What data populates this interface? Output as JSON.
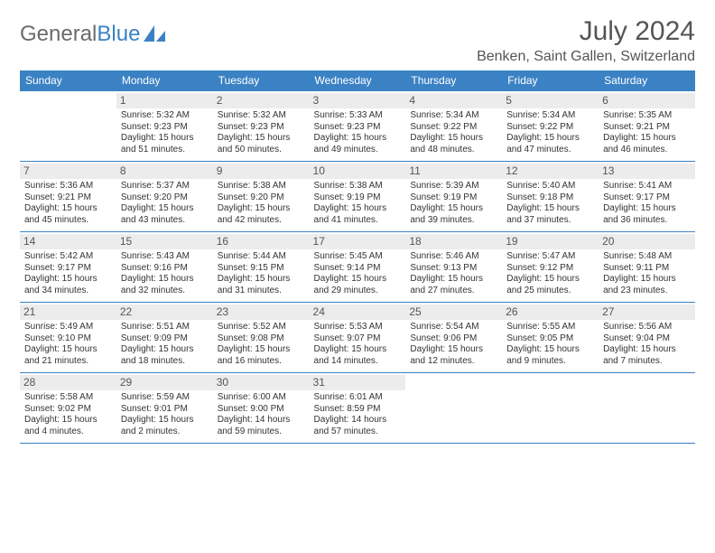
{
  "brand": {
    "part1": "General",
    "part2": "Blue"
  },
  "title": "July 2024",
  "location": "Benken, Saint Gallen, Switzerland",
  "colors": {
    "header_bg": "#3b82c4",
    "header_text": "#ffffff",
    "daynum_bg": "#ececec",
    "border": "#3b82c4",
    "body_text": "#333333",
    "title_text": "#555555"
  },
  "day_headers": [
    "Sunday",
    "Monday",
    "Tuesday",
    "Wednesday",
    "Thursday",
    "Friday",
    "Saturday"
  ],
  "weeks": [
    [
      null,
      {
        "n": "1",
        "sr": "5:32 AM",
        "ss": "9:23 PM",
        "dl": "15 hours and 51 minutes."
      },
      {
        "n": "2",
        "sr": "5:32 AM",
        "ss": "9:23 PM",
        "dl": "15 hours and 50 minutes."
      },
      {
        "n": "3",
        "sr": "5:33 AM",
        "ss": "9:23 PM",
        "dl": "15 hours and 49 minutes."
      },
      {
        "n": "4",
        "sr": "5:34 AM",
        "ss": "9:22 PM",
        "dl": "15 hours and 48 minutes."
      },
      {
        "n": "5",
        "sr": "5:34 AM",
        "ss": "9:22 PM",
        "dl": "15 hours and 47 minutes."
      },
      {
        "n": "6",
        "sr": "5:35 AM",
        "ss": "9:21 PM",
        "dl": "15 hours and 46 minutes."
      }
    ],
    [
      {
        "n": "7",
        "sr": "5:36 AM",
        "ss": "9:21 PM",
        "dl": "15 hours and 45 minutes."
      },
      {
        "n": "8",
        "sr": "5:37 AM",
        "ss": "9:20 PM",
        "dl": "15 hours and 43 minutes."
      },
      {
        "n": "9",
        "sr": "5:38 AM",
        "ss": "9:20 PM",
        "dl": "15 hours and 42 minutes."
      },
      {
        "n": "10",
        "sr": "5:38 AM",
        "ss": "9:19 PM",
        "dl": "15 hours and 41 minutes."
      },
      {
        "n": "11",
        "sr": "5:39 AM",
        "ss": "9:19 PM",
        "dl": "15 hours and 39 minutes."
      },
      {
        "n": "12",
        "sr": "5:40 AM",
        "ss": "9:18 PM",
        "dl": "15 hours and 37 minutes."
      },
      {
        "n": "13",
        "sr": "5:41 AM",
        "ss": "9:17 PM",
        "dl": "15 hours and 36 minutes."
      }
    ],
    [
      {
        "n": "14",
        "sr": "5:42 AM",
        "ss": "9:17 PM",
        "dl": "15 hours and 34 minutes."
      },
      {
        "n": "15",
        "sr": "5:43 AM",
        "ss": "9:16 PM",
        "dl": "15 hours and 32 minutes."
      },
      {
        "n": "16",
        "sr": "5:44 AM",
        "ss": "9:15 PM",
        "dl": "15 hours and 31 minutes."
      },
      {
        "n": "17",
        "sr": "5:45 AM",
        "ss": "9:14 PM",
        "dl": "15 hours and 29 minutes."
      },
      {
        "n": "18",
        "sr": "5:46 AM",
        "ss": "9:13 PM",
        "dl": "15 hours and 27 minutes."
      },
      {
        "n": "19",
        "sr": "5:47 AM",
        "ss": "9:12 PM",
        "dl": "15 hours and 25 minutes."
      },
      {
        "n": "20",
        "sr": "5:48 AM",
        "ss": "9:11 PM",
        "dl": "15 hours and 23 minutes."
      }
    ],
    [
      {
        "n": "21",
        "sr": "5:49 AM",
        "ss": "9:10 PM",
        "dl": "15 hours and 21 minutes."
      },
      {
        "n": "22",
        "sr": "5:51 AM",
        "ss": "9:09 PM",
        "dl": "15 hours and 18 minutes."
      },
      {
        "n": "23",
        "sr": "5:52 AM",
        "ss": "9:08 PM",
        "dl": "15 hours and 16 minutes."
      },
      {
        "n": "24",
        "sr": "5:53 AM",
        "ss": "9:07 PM",
        "dl": "15 hours and 14 minutes."
      },
      {
        "n": "25",
        "sr": "5:54 AM",
        "ss": "9:06 PM",
        "dl": "15 hours and 12 minutes."
      },
      {
        "n": "26",
        "sr": "5:55 AM",
        "ss": "9:05 PM",
        "dl": "15 hours and 9 minutes."
      },
      {
        "n": "27",
        "sr": "5:56 AM",
        "ss": "9:04 PM",
        "dl": "15 hours and 7 minutes."
      }
    ],
    [
      {
        "n": "28",
        "sr": "5:58 AM",
        "ss": "9:02 PM",
        "dl": "15 hours and 4 minutes."
      },
      {
        "n": "29",
        "sr": "5:59 AM",
        "ss": "9:01 PM",
        "dl": "15 hours and 2 minutes."
      },
      {
        "n": "30",
        "sr": "6:00 AM",
        "ss": "9:00 PM",
        "dl": "14 hours and 59 minutes."
      },
      {
        "n": "31",
        "sr": "6:01 AM",
        "ss": "8:59 PM",
        "dl": "14 hours and 57 minutes."
      },
      null,
      null,
      null
    ]
  ],
  "labels": {
    "sunrise": "Sunrise:",
    "sunset": "Sunset:",
    "daylight": "Daylight:"
  }
}
